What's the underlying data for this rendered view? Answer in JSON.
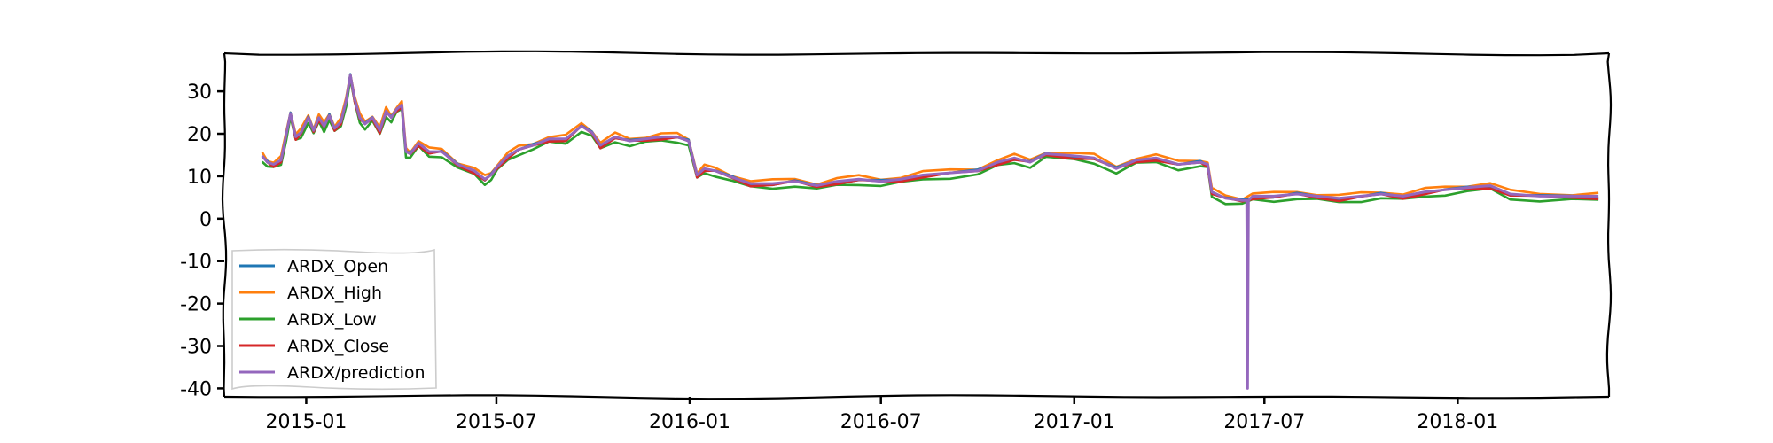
{
  "chart_data": {
    "type": "line",
    "style": "xkcd-like hand-drawn axes",
    "title": "",
    "xlabel": "",
    "ylabel": "",
    "x_range": [
      "2014-10-15",
      "2018-05-25"
    ],
    "ylim": [
      -42,
      39
    ],
    "yticks": [
      30,
      20,
      10,
      0,
      -10,
      -20,
      -30,
      -40
    ],
    "xticks": [
      {
        "date": "2015-01-01",
        "label": "2015-01"
      },
      {
        "date": "2015-07-01",
        "label": "2015-07"
      },
      {
        "date": "2016-01-01",
        "label": "2016-01"
      },
      {
        "date": "2016-07-01",
        "label": "2016-07"
      },
      {
        "date": "2017-01-01",
        "label": "2017-01"
      },
      {
        "date": "2017-07-01",
        "label": "2017-07"
      },
      {
        "date": "2018-01-01",
        "label": "2018-01"
      }
    ],
    "grid": false,
    "legend_position": "lower-left",
    "series": [
      {
        "name": "ARDX_Open",
        "color": "#1f77b4",
        "offset": 0.2
      },
      {
        "name": "ARDX_High",
        "color": "#ff7f0e",
        "offset": 0.9
      },
      {
        "name": "ARDX_Low",
        "color": "#2ca02c",
        "offset": -0.7
      },
      {
        "name": "ARDX_Close",
        "color": "#d62728",
        "offset": 0.0
      },
      {
        "name": "ARDX/prediction",
        "color": "#9467bd",
        "offset": 0.3
      }
    ],
    "base_values": [
      [
        "2014-11-20",
        14.5
      ],
      [
        "2014-11-25",
        13.0
      ],
      [
        "2014-12-01",
        12.5
      ],
      [
        "2014-12-08",
        13.5
      ],
      [
        "2014-12-13",
        19.5
      ],
      [
        "2014-12-17",
        24.5
      ],
      [
        "2014-12-22",
        19.0
      ],
      [
        "2014-12-27",
        20.0
      ],
      [
        "2015-01-03",
        23.5
      ],
      [
        "2015-01-08",
        20.5
      ],
      [
        "2015-01-13",
        23.5
      ],
      [
        "2015-01-18",
        21.5
      ],
      [
        "2015-01-23",
        24.0
      ],
      [
        "2015-01-28",
        21.0
      ],
      [
        "2015-02-03",
        22.5
      ],
      [
        "2015-02-08",
        27.5
      ],
      [
        "2015-02-12",
        33.5
      ],
      [
        "2015-02-16",
        28.0
      ],
      [
        "2015-02-21",
        23.5
      ],
      [
        "2015-02-26",
        22.0
      ],
      [
        "2015-03-05",
        23.5
      ],
      [
        "2015-03-12",
        20.5
      ],
      [
        "2015-03-18",
        25.0
      ],
      [
        "2015-03-23",
        23.5
      ],
      [
        "2015-03-28",
        25.5
      ],
      [
        "2015-04-02",
        26.5
      ],
      [
        "2015-04-06",
        15.5
      ],
      [
        "2015-04-10",
        15.0
      ],
      [
        "2015-04-18",
        17.5
      ],
      [
        "2015-04-28",
        15.5
      ],
      [
        "2015-05-10",
        15.5
      ],
      [
        "2015-05-25",
        12.5
      ],
      [
        "2015-06-10",
        11.0
      ],
      [
        "2015-06-20",
        9.0
      ],
      [
        "2015-06-26",
        10.0
      ],
      [
        "2015-07-02",
        12.0
      ],
      [
        "2015-07-12",
        14.5
      ],
      [
        "2015-07-22",
        16.0
      ],
      [
        "2015-08-05",
        17.0
      ],
      [
        "2015-08-20",
        18.5
      ],
      [
        "2015-09-05",
        18.5
      ],
      [
        "2015-09-20",
        21.5
      ],
      [
        "2015-09-30",
        20.0
      ],
      [
        "2015-10-08",
        17.0
      ],
      [
        "2015-10-22",
        19.0
      ],
      [
        "2015-11-05",
        18.0
      ],
      [
        "2015-11-20",
        18.5
      ],
      [
        "2015-12-05",
        19.0
      ],
      [
        "2015-12-20",
        19.0
      ],
      [
        "2015-12-31",
        18.0
      ],
      [
        "2016-01-08",
        10.0
      ],
      [
        "2016-01-15",
        11.5
      ],
      [
        "2016-01-25",
        11.0
      ],
      [
        "2016-02-10",
        9.5
      ],
      [
        "2016-02-28",
        8.0
      ],
      [
        "2016-03-20",
        8.0
      ],
      [
        "2016-04-10",
        8.5
      ],
      [
        "2016-05-01",
        7.5
      ],
      [
        "2016-05-20",
        8.5
      ],
      [
        "2016-06-10",
        9.0
      ],
      [
        "2016-07-01",
        8.5
      ],
      [
        "2016-07-20",
        9.0
      ],
      [
        "2016-08-10",
        10.0
      ],
      [
        "2016-09-05",
        10.5
      ],
      [
        "2016-10-01",
        11.0
      ],
      [
        "2016-10-20",
        13.0
      ],
      [
        "2016-11-05",
        14.0
      ],
      [
        "2016-11-20",
        13.0
      ],
      [
        "2016-12-05",
        15.0
      ],
      [
        "2017-01-01",
        14.5
      ],
      [
        "2017-01-20",
        14.0
      ],
      [
        "2017-02-10",
        11.5
      ],
      [
        "2017-03-01",
        13.5
      ],
      [
        "2017-03-20",
        14.0
      ],
      [
        "2017-04-10",
        12.5
      ],
      [
        "2017-05-01",
        13.0
      ],
      [
        "2017-05-08",
        12.5
      ],
      [
        "2017-05-12",
        6.0
      ],
      [
        "2017-05-25",
        4.5
      ],
      [
        "2017-06-10",
        4.0
      ],
      [
        "2017-06-20",
        5.0
      ],
      [
        "2017-07-10",
        5.0
      ],
      [
        "2017-08-01",
        5.5
      ],
      [
        "2017-08-20",
        5.0
      ],
      [
        "2017-09-10",
        4.5
      ],
      [
        "2017-10-01",
        5.0
      ],
      [
        "2017-10-20",
        5.5
      ],
      [
        "2017-11-10",
        5.0
      ],
      [
        "2017-12-01",
        6.0
      ],
      [
        "2017-12-20",
        6.5
      ],
      [
        "2018-01-10",
        7.0
      ],
      [
        "2018-02-01",
        7.5
      ],
      [
        "2018-02-20",
        5.5
      ],
      [
        "2018-03-20",
        5.0
      ],
      [
        "2018-04-20",
        5.0
      ],
      [
        "2018-05-15",
        5.0
      ]
    ],
    "prediction_spike": {
      "date": "2017-06-15",
      "value": -40
    }
  },
  "legend": {
    "items": [
      {
        "label": "ARDX_Open",
        "color": "#1f77b4"
      },
      {
        "label": "ARDX_High",
        "color": "#ff7f0e"
      },
      {
        "label": "ARDX_Low",
        "color": "#2ca02c"
      },
      {
        "label": "ARDX_Close",
        "color": "#d62728"
      },
      {
        "label": "ARDX/prediction",
        "color": "#9467bd"
      }
    ]
  }
}
